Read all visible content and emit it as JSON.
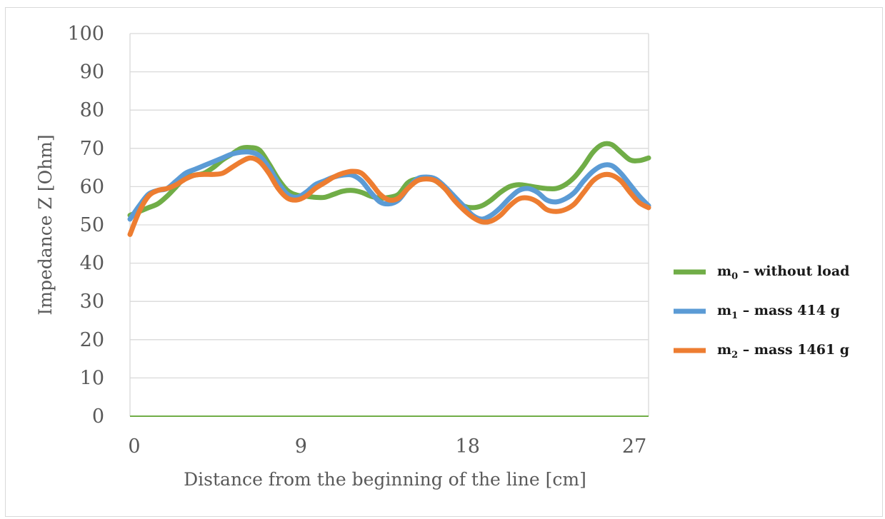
{
  "chart_data": {
    "type": "line",
    "xlabel": "Distance from the beginning of the line [cm]",
    "ylabel": "Impedance Z [Ohm]",
    "xlim": [
      0,
      28
    ],
    "ylim": [
      0,
      100
    ],
    "x_ticks": [
      "0",
      "9",
      "18",
      "27"
    ],
    "y_ticks": [
      "0",
      "10",
      "20",
      "30",
      "40",
      "50",
      "60",
      "70",
      "80",
      "90",
      "100"
    ],
    "grid": true,
    "legend_position": "right",
    "series": [
      {
        "name": "m",
        "subscript": "0",
        "suffix": " – without load",
        "color": "#70ad47",
        "x": [
          0,
          0.5,
          1,
          1.5,
          2,
          2.5,
          3,
          3.5,
          4,
          4.5,
          5,
          5.5,
          6,
          6.5,
          7,
          7.5,
          8,
          8.5,
          9,
          9.5,
          10,
          10.5,
          11,
          11.5,
          12,
          12.5,
          13,
          13.5,
          14,
          14.5,
          15,
          15.5,
          16,
          16.5,
          17,
          17.5,
          18,
          18.5,
          19,
          19.5,
          20,
          20.5,
          21,
          21.5,
          22,
          22.5,
          23,
          23.5,
          24,
          24.5,
          25,
          25.5,
          26,
          26.5,
          27,
          27.5,
          28
        ],
        "values": [
          52.5,
          53.5,
          54.5,
          55.5,
          57.5,
          60,
          62.5,
          63,
          63.5,
          65,
          67,
          68.5,
          70,
          70.2,
          69.5,
          66,
          62,
          59,
          57.8,
          57.5,
          57.2,
          57.2,
          58,
          58.8,
          59,
          58.5,
          57.5,
          57,
          57.2,
          58,
          61,
          62,
          62.2,
          61.5,
          59.5,
          57,
          55,
          54.5,
          55,
          56.5,
          58.5,
          60,
          60.5,
          60.2,
          59.8,
          59.5,
          59.5,
          60.5,
          62.5,
          65.5,
          69,
          71,
          71,
          69,
          67,
          66.8,
          67.5
        ]
      },
      {
        "name": "m",
        "subscript": "1",
        "suffix": " – mass 414 g",
        "color": "#5b9bd5",
        "x": [
          0,
          0.5,
          1,
          1.5,
          2,
          2.5,
          3,
          3.5,
          4,
          4.5,
          5,
          5.5,
          6,
          6.5,
          7,
          7.5,
          8,
          8.5,
          9,
          9.5,
          10,
          10.5,
          11,
          11.5,
          12,
          12.5,
          13,
          13.5,
          14,
          14.5,
          15,
          15.5,
          16,
          16.5,
          17,
          17.5,
          18,
          18.5,
          19,
          19.5,
          20,
          20.5,
          21,
          21.5,
          22,
          22.5,
          23,
          23.5,
          24,
          24.5,
          25,
          25.5,
          26,
          26.5,
          27,
          27.5,
          28
        ],
        "values": [
          51.5,
          55,
          58,
          59,
          59.5,
          61.5,
          63.5,
          64.5,
          65.5,
          66.5,
          67.5,
          68.5,
          69,
          69,
          68,
          65,
          61,
          58,
          57.2,
          58.5,
          60.5,
          61.5,
          62.5,
          63,
          63,
          61.5,
          58.5,
          56,
          55.5,
          56.5,
          59.5,
          62,
          62.5,
          62,
          60,
          57.5,
          55,
          52.5,
          51.5,
          52.5,
          54.5,
          57,
          59,
          59.5,
          58.5,
          56.5,
          56,
          56.8,
          58.5,
          61.5,
          64,
          65.5,
          65.5,
          63.5,
          60.5,
          57.5,
          55
        ]
      },
      {
        "name": "m",
        "subscript": "2",
        "suffix": " – mass 1461 g",
        "color": "#ed7d31",
        "x": [
          0,
          0.5,
          1,
          1.5,
          2,
          2.5,
          3,
          3.5,
          4,
          4.5,
          5,
          5.5,
          6,
          6.5,
          7,
          7.5,
          8,
          8.5,
          9,
          9.5,
          10,
          10.5,
          11,
          11.5,
          12,
          12.5,
          13,
          13.5,
          14,
          14.5,
          15,
          15.5,
          16,
          16.5,
          17,
          17.5,
          18,
          18.5,
          19,
          19.5,
          20,
          20.5,
          21,
          21.5,
          22,
          22.5,
          23,
          23.5,
          24,
          24.5,
          25,
          25.5,
          26,
          26.5,
          27,
          27.5,
          28
        ],
        "values": [
          47.5,
          53.5,
          57.5,
          59,
          59.5,
          60.5,
          62,
          63,
          63.2,
          63.2,
          63.5,
          65,
          66.5,
          67.5,
          66.5,
          63.5,
          59.5,
          57,
          56.5,
          57.5,
          59.5,
          61,
          62.5,
          63.5,
          64,
          63.5,
          61,
          58,
          56.5,
          57,
          59.5,
          61.5,
          62,
          61.5,
          59.5,
          56.5,
          54,
          52,
          50.8,
          51,
          52.5,
          55,
          56.8,
          57,
          56,
          54,
          53.5,
          54,
          55.5,
          58.5,
          61.5,
          63,
          63,
          61.5,
          58.5,
          55.8,
          54.5
        ]
      }
    ]
  }
}
